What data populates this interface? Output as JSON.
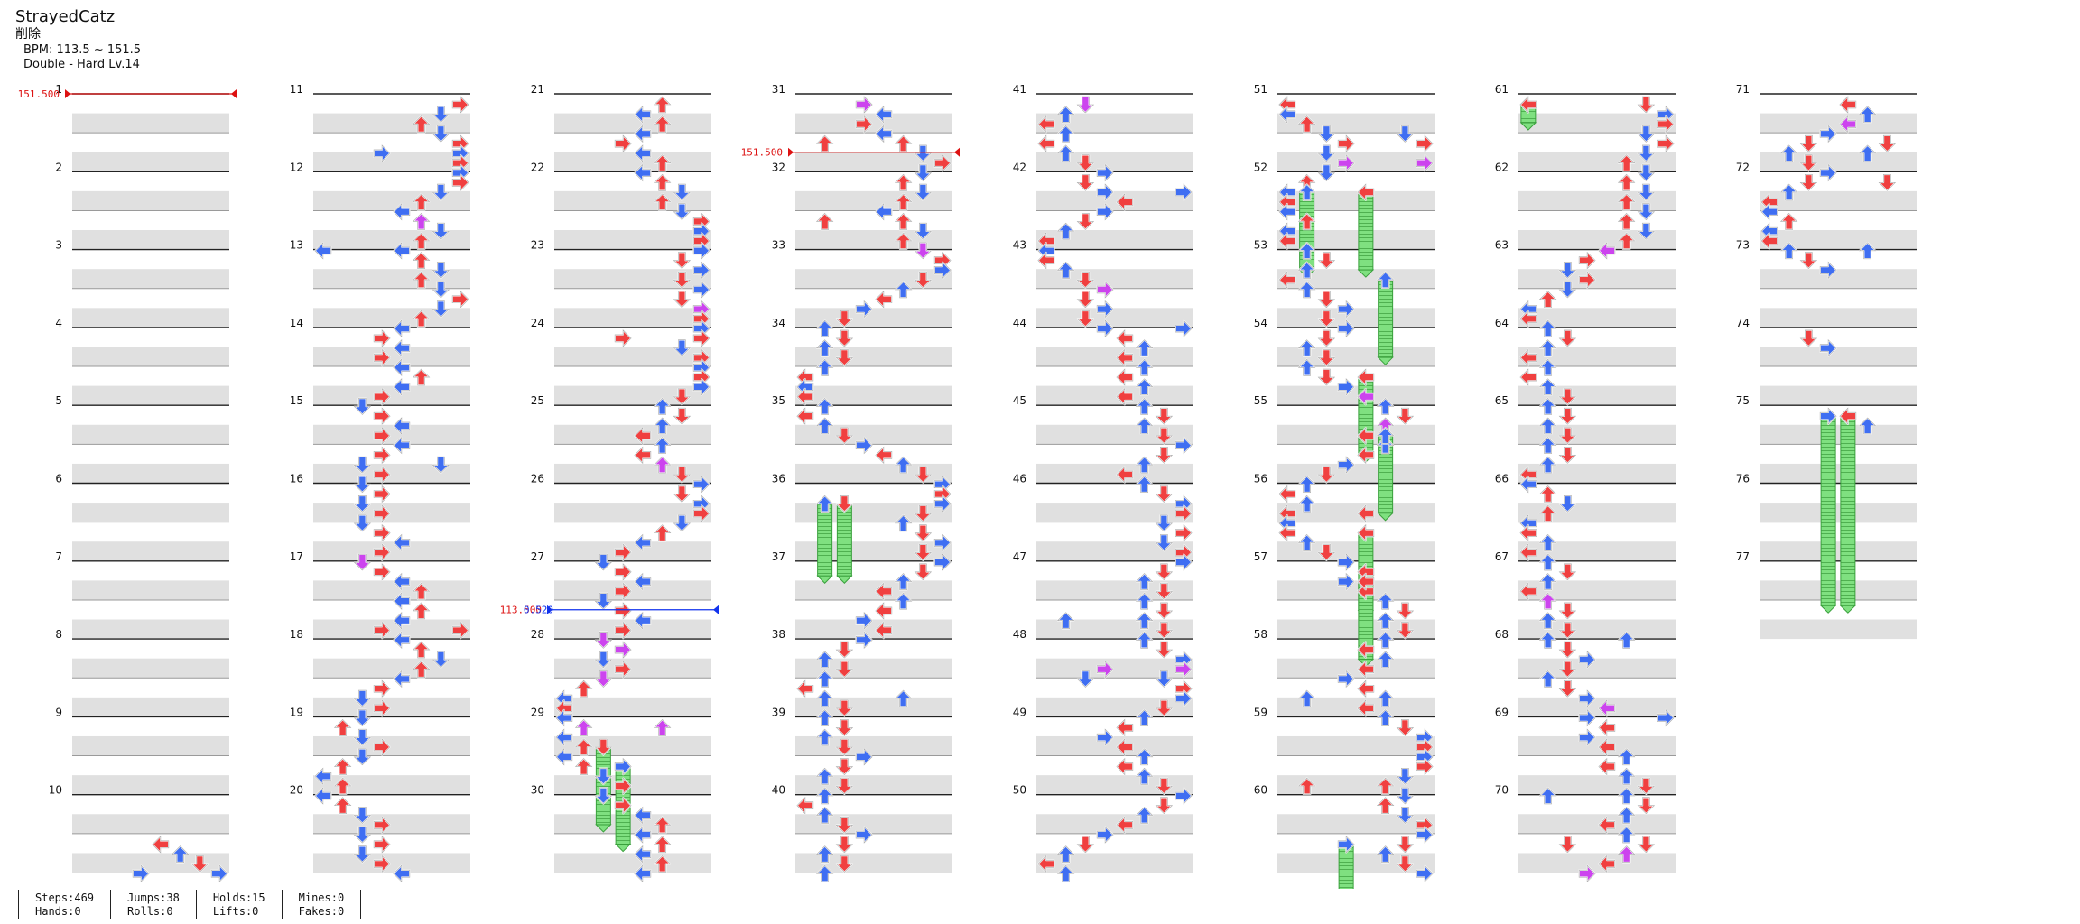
{
  "song": {
    "title": "StrayedCatz",
    "subtitle": "削除",
    "bpm_text": "BPM: 113.5 ~ 151.5",
    "difficulty_text": "Double - Hard  Lv.14"
  },
  "chart": {
    "measures_total": 77,
    "measures_per_column": 10,
    "lanes": 8,
    "bpm_changes": [
      {
        "measure": 1,
        "beat": 0,
        "bpm": "151.500",
        "type": "up"
      },
      {
        "measure": 31,
        "beat": 3,
        "bpm": "151.500",
        "type": "up"
      },
      {
        "measure": 27,
        "beat": 2.5,
        "bpm": "113.500",
        "stop": "0.520",
        "type": "down"
      }
    ],
    "colors": {
      "red_arrow": "#f04040",
      "blue_arrow": "#3f6ef2",
      "purple_arrow": "#cc44ee",
      "yellow_arrow": "#f2e040",
      "hold_body": "#7fe080",
      "stripe": "#e0e0e0",
      "bpm_up": "#dd1111",
      "bpm_down": "#1133ee"
    }
  },
  "stats": {
    "steps": "Steps:469",
    "jumps": "Jumps:38",
    "holds": "Holds:15",
    "mines": "Mines:0",
    "hands": "Hands:0",
    "rolls": "Rolls:0",
    "lifts": "Lifts:0",
    "fakes": "Fakes:0"
  }
}
